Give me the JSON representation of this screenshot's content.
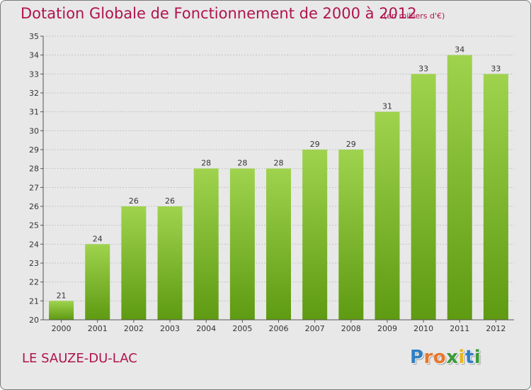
{
  "header": {
    "title": "Dotation Globale de Fonctionnement de 2000 à 2012",
    "subtitle": "(en milliers d'€)"
  },
  "footer": {
    "commune": "LE SAUZE-DU-LAC",
    "logo_letters": [
      "P",
      "r",
      "o",
      "x",
      "i",
      "t",
      "i"
    ],
    "logo_colors": [
      "#2f7fc4",
      "#e8762b",
      "#e8762b",
      "#3a9a3a",
      "#e8b51e",
      "#2f7fc4",
      "#3a9a3a"
    ]
  },
  "chart_data": {
    "type": "bar",
    "categories": [
      "2000",
      "2001",
      "2002",
      "2003",
      "2004",
      "2005",
      "2006",
      "2007",
      "2008",
      "2009",
      "2010",
      "2011",
      "2012"
    ],
    "values": [
      21,
      24,
      26,
      26,
      28,
      28,
      28,
      29,
      29,
      31,
      33,
      34,
      33
    ],
    "title": "Dotation Globale de Fonctionnement de 2000 à 2012",
    "subtitle": "(en milliers d'€)",
    "ylim": [
      20,
      35
    ],
    "yticks": [
      20,
      21,
      22,
      23,
      24,
      25,
      26,
      27,
      28,
      29,
      30,
      31,
      32,
      33,
      34,
      35
    ],
    "grid": true,
    "bar_color_top": "#9fd34e",
    "bar_color_bottom": "#5e9a12"
  }
}
